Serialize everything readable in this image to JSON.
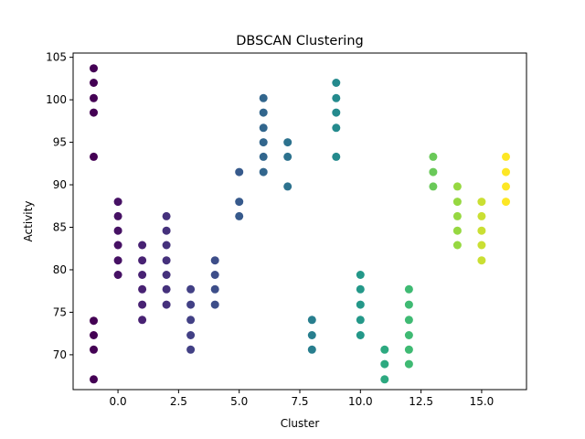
{
  "chart_data": {
    "type": "scatter",
    "title": "DBSCAN Clustering",
    "xlabel": "Cluster",
    "ylabel": "Activity",
    "xlim": [
      -1.85,
      16.85
    ],
    "ylim": [
      65.9,
      105.5
    ],
    "xticks": [
      0.0,
      2.5,
      5.0,
      7.5,
      10.0,
      12.5,
      15.0
    ],
    "xtick_labels": [
      "0.0",
      "2.5",
      "5.0",
      "7.5",
      "10.0",
      "12.5",
      "15.0"
    ],
    "yticks": [
      70,
      75,
      80,
      85,
      90,
      95,
      100,
      105
    ],
    "ytick_labels": [
      "70",
      "75",
      "80",
      "85",
      "90",
      "95",
      "100",
      "105"
    ],
    "grid": false,
    "colormap": "viridis",
    "color_value_range": [
      -1,
      16
    ],
    "points": [
      {
        "x": -1,
        "y": 103.7
      },
      {
        "x": -1,
        "y": 102.0
      },
      {
        "x": -1,
        "y": 100.2
      },
      {
        "x": -1,
        "y": 98.5
      },
      {
        "x": -1,
        "y": 93.3
      },
      {
        "x": -1,
        "y": 74.0
      },
      {
        "x": -1,
        "y": 72.3
      },
      {
        "x": -1,
        "y": 70.6
      },
      {
        "x": -1,
        "y": 67.1
      },
      {
        "x": 0,
        "y": 88.0
      },
      {
        "x": 0,
        "y": 86.3
      },
      {
        "x": 0,
        "y": 84.6
      },
      {
        "x": 0,
        "y": 82.9
      },
      {
        "x": 0,
        "y": 81.1
      },
      {
        "x": 0,
        "y": 79.4
      },
      {
        "x": 1,
        "y": 82.9
      },
      {
        "x": 1,
        "y": 81.1
      },
      {
        "x": 1,
        "y": 79.4
      },
      {
        "x": 1,
        "y": 77.7
      },
      {
        "x": 1,
        "y": 75.9
      },
      {
        "x": 1,
        "y": 74.1
      },
      {
        "x": 2,
        "y": 86.3
      },
      {
        "x": 2,
        "y": 84.6
      },
      {
        "x": 2,
        "y": 82.9
      },
      {
        "x": 2,
        "y": 81.1
      },
      {
        "x": 2,
        "y": 79.4
      },
      {
        "x": 2,
        "y": 77.7
      },
      {
        "x": 2,
        "y": 75.9
      },
      {
        "x": 3,
        "y": 77.7
      },
      {
        "x": 3,
        "y": 75.9
      },
      {
        "x": 3,
        "y": 74.1
      },
      {
        "x": 3,
        "y": 72.3
      },
      {
        "x": 3,
        "y": 70.6
      },
      {
        "x": 4,
        "y": 81.1
      },
      {
        "x": 4,
        "y": 79.4
      },
      {
        "x": 4,
        "y": 77.7
      },
      {
        "x": 4,
        "y": 75.9
      },
      {
        "x": 5,
        "y": 91.5
      },
      {
        "x": 5,
        "y": 88.0
      },
      {
        "x": 5,
        "y": 86.3
      },
      {
        "x": 6,
        "y": 100.2
      },
      {
        "x": 6,
        "y": 98.5
      },
      {
        "x": 6,
        "y": 96.7
      },
      {
        "x": 6,
        "y": 95.0
      },
      {
        "x": 6,
        "y": 93.3
      },
      {
        "x": 6,
        "y": 91.5
      },
      {
        "x": 7,
        "y": 95.0
      },
      {
        "x": 7,
        "y": 93.3
      },
      {
        "x": 7,
        "y": 89.8
      },
      {
        "x": 8,
        "y": 74.1
      },
      {
        "x": 8,
        "y": 72.3
      },
      {
        "x": 8,
        "y": 70.6
      },
      {
        "x": 9,
        "y": 102.0
      },
      {
        "x": 9,
        "y": 100.2
      },
      {
        "x": 9,
        "y": 98.5
      },
      {
        "x": 9,
        "y": 96.7
      },
      {
        "x": 9,
        "y": 93.3
      },
      {
        "x": 10,
        "y": 79.4
      },
      {
        "x": 10,
        "y": 77.7
      },
      {
        "x": 10,
        "y": 75.9
      },
      {
        "x": 10,
        "y": 74.1
      },
      {
        "x": 10,
        "y": 72.3
      },
      {
        "x": 11,
        "y": 70.6
      },
      {
        "x": 11,
        "y": 68.9
      },
      {
        "x": 11,
        "y": 67.1
      },
      {
        "x": 12,
        "y": 77.7
      },
      {
        "x": 12,
        "y": 75.9
      },
      {
        "x": 12,
        "y": 74.1
      },
      {
        "x": 12,
        "y": 72.3
      },
      {
        "x": 12,
        "y": 70.6
      },
      {
        "x": 12,
        "y": 68.9
      },
      {
        "x": 13,
        "y": 93.3
      },
      {
        "x": 13,
        "y": 91.5
      },
      {
        "x": 13,
        "y": 89.8
      },
      {
        "x": 14,
        "y": 89.8
      },
      {
        "x": 14,
        "y": 88.0
      },
      {
        "x": 14,
        "y": 86.3
      },
      {
        "x": 14,
        "y": 84.6
      },
      {
        "x": 14,
        "y": 82.9
      },
      {
        "x": 15,
        "y": 88.0
      },
      {
        "x": 15,
        "y": 86.3
      },
      {
        "x": 15,
        "y": 84.6
      },
      {
        "x": 15,
        "y": 82.9
      },
      {
        "x": 15,
        "y": 81.1
      },
      {
        "x": 16,
        "y": 93.3
      },
      {
        "x": 16,
        "y": 91.5
      },
      {
        "x": 16,
        "y": 89.8
      },
      {
        "x": 16,
        "y": 88.0
      }
    ]
  }
}
